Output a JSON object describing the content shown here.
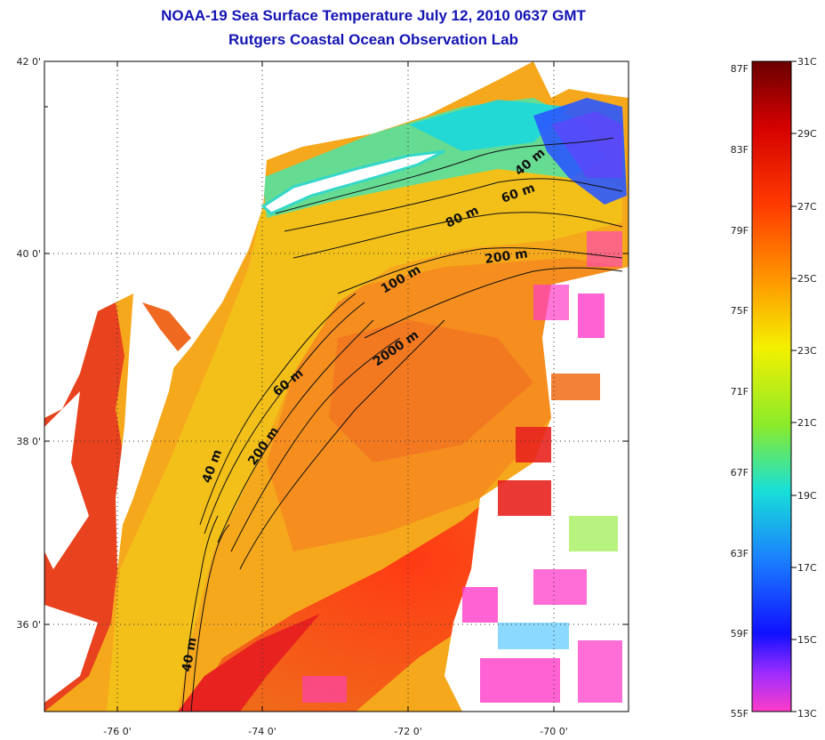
{
  "header": {
    "title_line1": "NOAA-19 Sea Surface Temperature July 12, 2010 0637 GMT",
    "title_line2": "Rutgers Coastal Ocean Observation Lab"
  },
  "map": {
    "lat_ticks": [
      "42 0'",
      "40 0'",
      "38 0'",
      "36 0'"
    ],
    "lon_ticks": [
      "-76 0'",
      "-74 0'",
      "-72 0'",
      "-70 0'"
    ],
    "contour_labels": [
      "40 m",
      "60 m",
      "80 m",
      "200 m",
      "100 m",
      "2000 m",
      "60 m",
      "200 m",
      "40 m",
      "40 m"
    ]
  },
  "colorbar": {
    "f_labels": [
      "87F",
      "83F",
      "79F",
      "75F",
      "71F",
      "67F",
      "63F",
      "59F",
      "55F"
    ],
    "c_labels": [
      "31C",
      "29C",
      "27C",
      "25C",
      "23C",
      "21C",
      "19C",
      "17C",
      "15C",
      "13C"
    ]
  },
  "colors": {
    "title": "#1414b4",
    "land": "#ffffff",
    "shelf": "#f3c21a",
    "warm": "#f08a1e",
    "hot": "#e8221e",
    "cool": "#19d9d9",
    "cold": "#1a3cff"
  }
}
